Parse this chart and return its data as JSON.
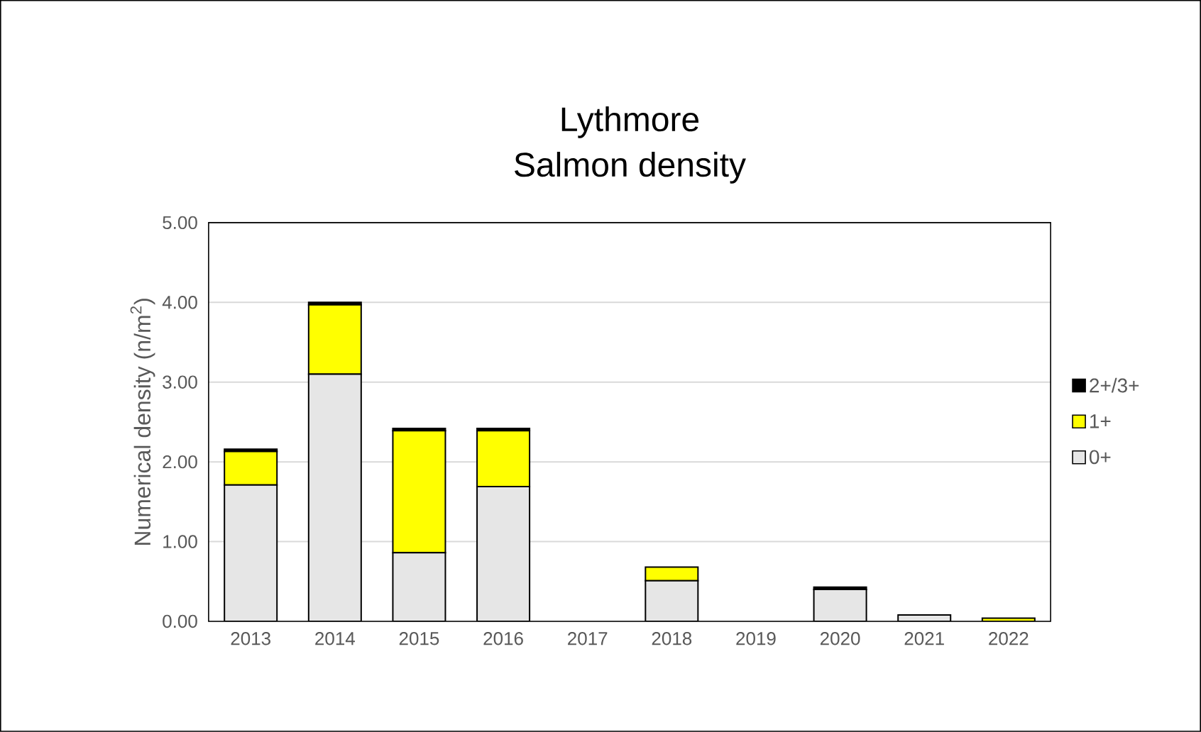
{
  "chart_data": {
    "type": "bar",
    "title": "Lythmore",
    "subtitle": "Salmon density",
    "ylabel": "Numerical density (n/m$^{2}$)",
    "categories": [
      "2013",
      "2014",
      "2015",
      "2016",
      "2017",
      "2018",
      "2019",
      "2020",
      "2021",
      "2022"
    ],
    "series": [
      {
        "name": "0+",
        "color": "#e6e6e6",
        "values": [
          1.71,
          3.1,
          0.86,
          1.69,
          0,
          0.51,
          0,
          0.4,
          0.08,
          null
        ]
      },
      {
        "name": "1+",
        "color": "#ffff00",
        "values": [
          0.42,
          0.87,
          1.53,
          0.7,
          0,
          0.17,
          0,
          0,
          null,
          0.04
        ]
      },
      {
        "name": "2+/3+",
        "color": "#000000",
        "values": [
          0.03,
          0.03,
          0.03,
          0.03,
          0,
          null,
          0,
          0.03,
          null,
          0
        ]
      }
    ],
    "stacked": true,
    "ylim": [
      0,
      5
    ],
    "yticks": [
      {
        "value": 0,
        "label": "0.00"
      },
      {
        "value": 1,
        "label": "1.00"
      },
      {
        "value": 2,
        "label": "2.00"
      },
      {
        "value": 3,
        "label": "3.00"
      },
      {
        "value": 4,
        "label": "4.00"
      },
      {
        "value": 5,
        "label": "5.00"
      }
    ],
    "grid": "y",
    "legend": "right"
  }
}
